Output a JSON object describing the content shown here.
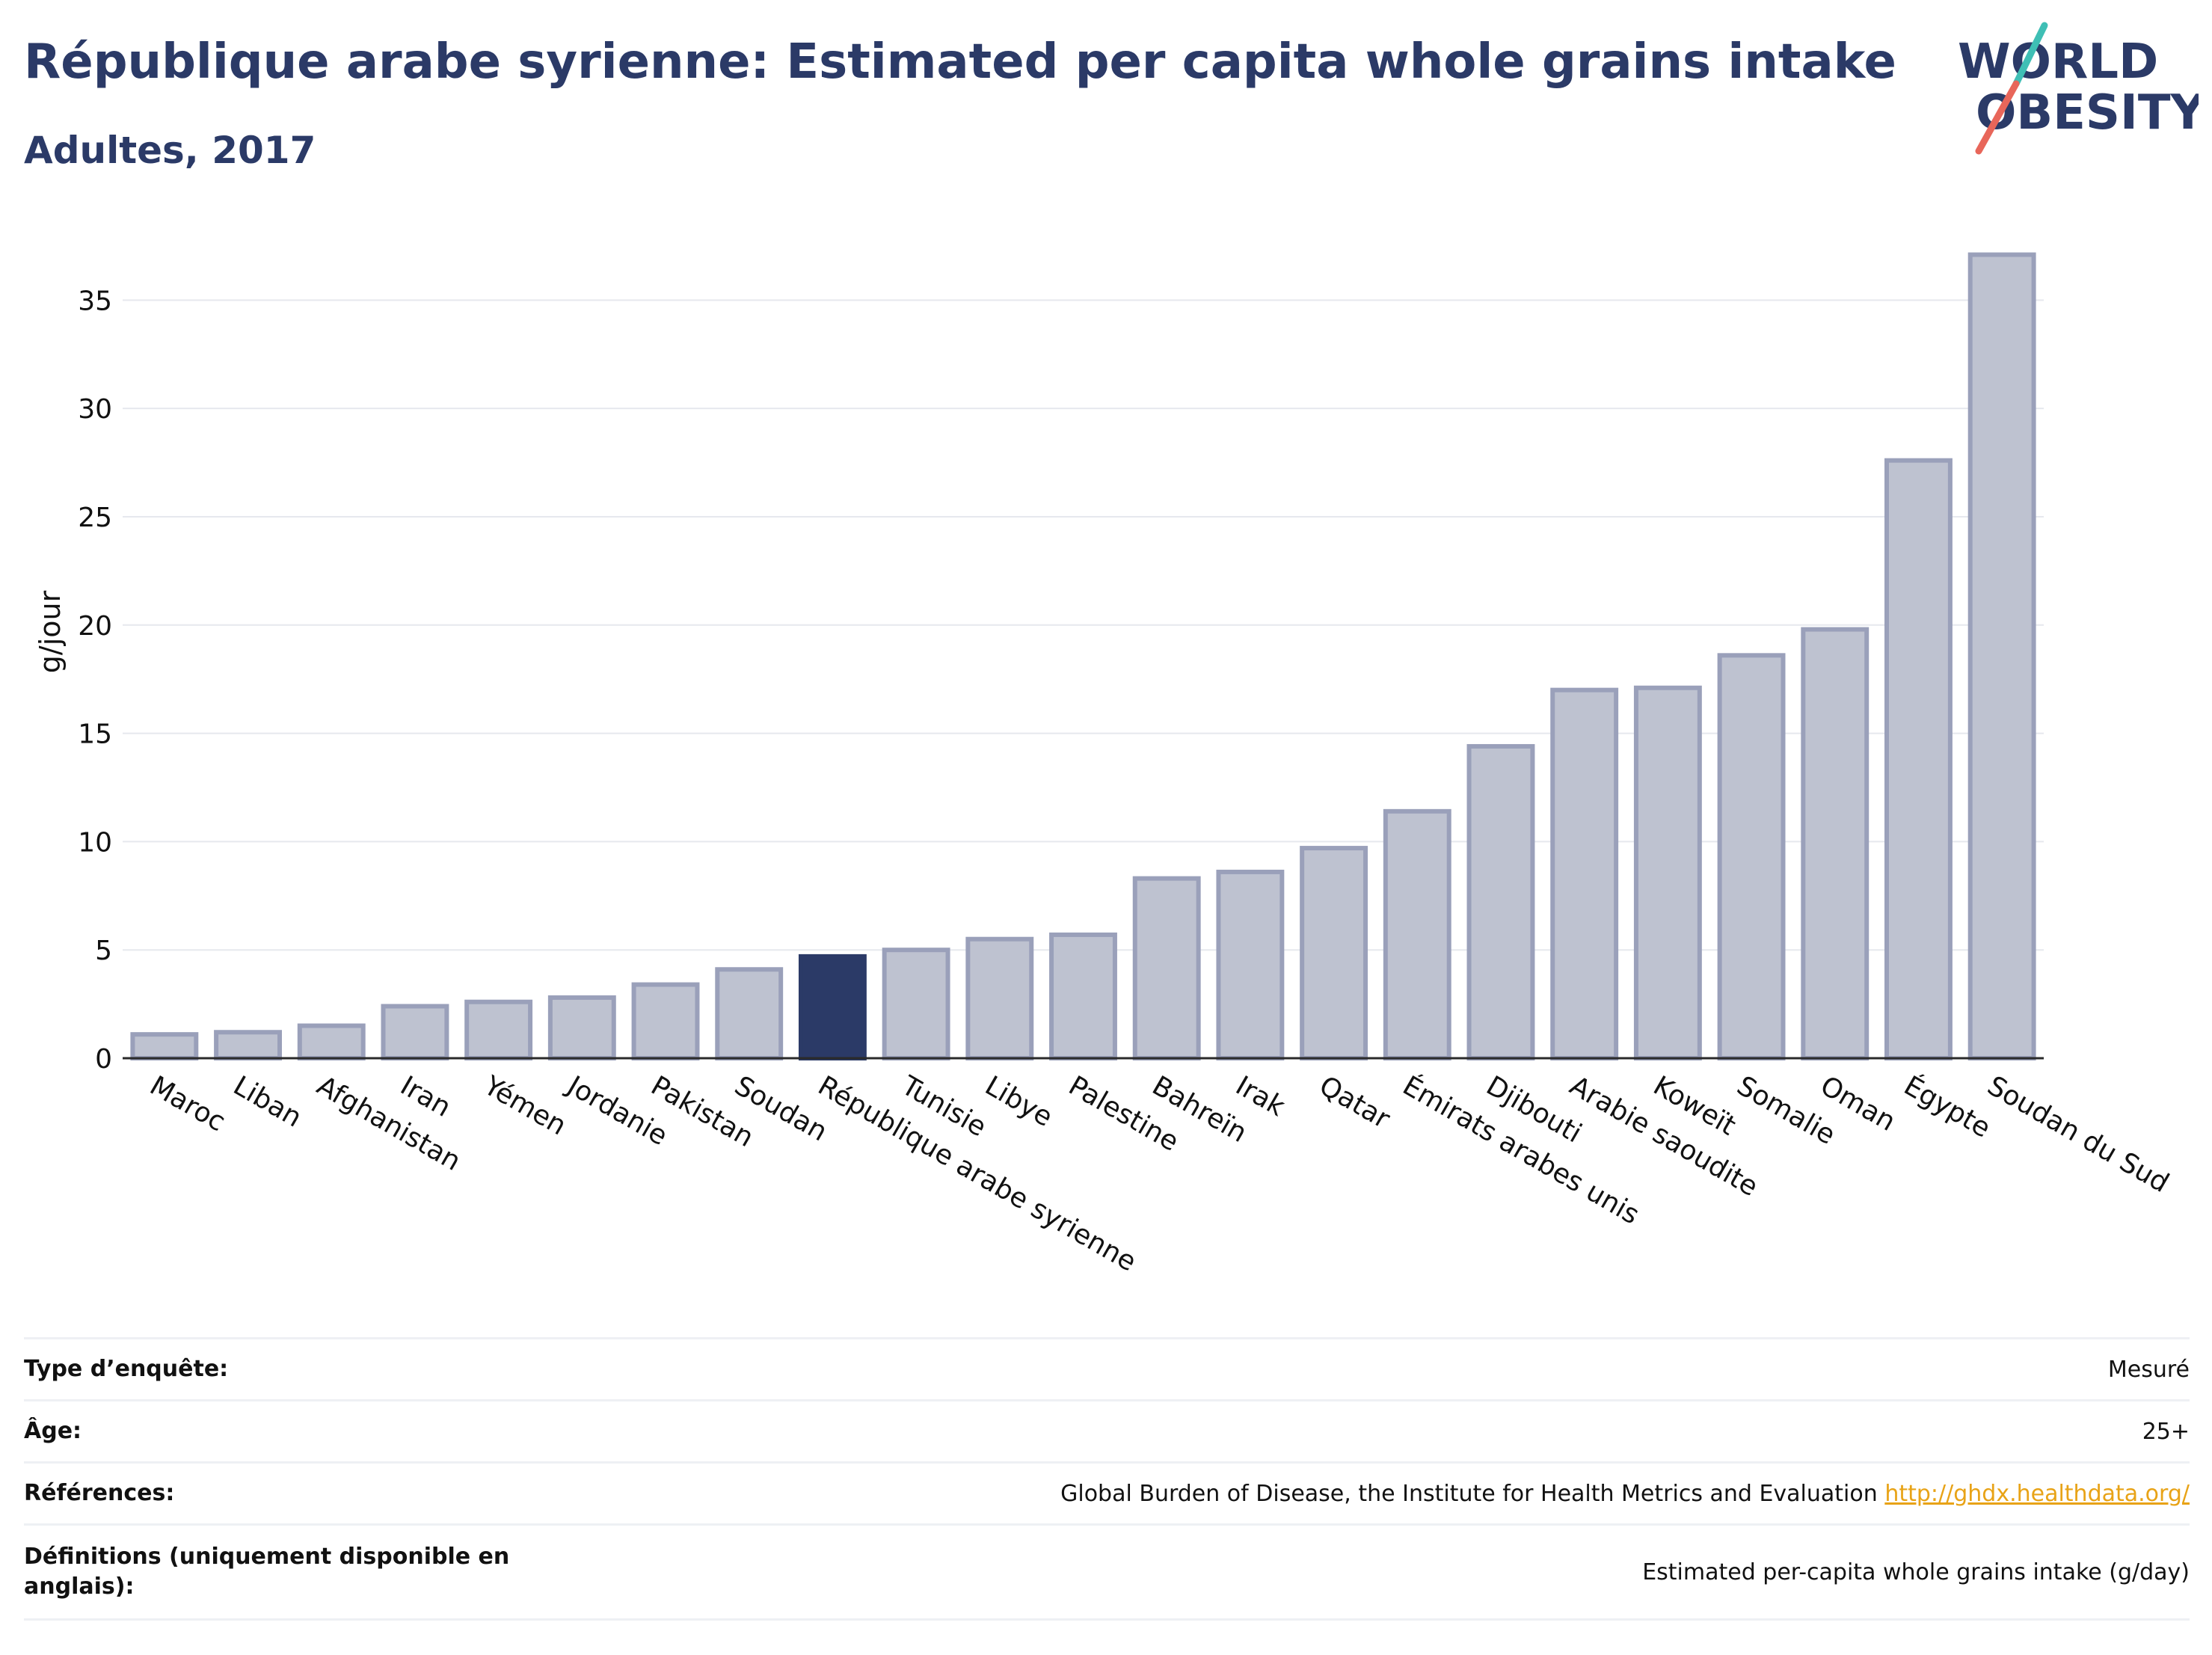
{
  "header": {
    "title": "République arabe syrienne: Estimated per capita whole grains intake",
    "subtitle": "Adultes, 2017"
  },
  "logo": {
    "line1": "WORLD",
    "line2": "OBESITY"
  },
  "colors": {
    "primary": "#2b3a67",
    "bar": "#bec2d0",
    "bar_edge": "#9aa0ba",
    "accent_teal": "#3fbfb5",
    "accent_red": "#e8665a",
    "link": "#e8a317"
  },
  "chart_data": {
    "type": "bar",
    "categories": [
      "Maroc",
      "Liban",
      "Afghanistan",
      "Iran",
      "Yémen",
      "Jordanie",
      "Pakistan",
      "Soudan",
      "République arabe syrienne",
      "Tunisie",
      "Libye",
      "Palestine",
      "Bahreïn",
      "Irak",
      "Qatar",
      "Émirats arabes unis",
      "Djibouti",
      "Arabie saoudite",
      "Koweït",
      "Somalie",
      "Oman",
      "Égypte",
      "Soudan du Sud"
    ],
    "values": [
      1.1,
      1.2,
      1.5,
      2.4,
      2.6,
      2.8,
      3.4,
      4.1,
      4.7,
      5.0,
      5.5,
      5.7,
      8.3,
      8.6,
      9.7,
      11.4,
      14.4,
      17.0,
      17.1,
      18.6,
      19.8,
      27.6,
      37.1
    ],
    "highlight": "République arabe syrienne",
    "ylabel": "g/jour",
    "xlabel": "",
    "ylim": [
      0,
      38.5
    ],
    "yticks": [
      0,
      5,
      10,
      15,
      20,
      25,
      30,
      35
    ],
    "grid": true
  },
  "info": [
    {
      "label": "Type d’enquête:",
      "value": "Mesuré"
    },
    {
      "label": "Âge:",
      "value": "25+"
    },
    {
      "label": "Références:",
      "value": "Global Burden of Disease, the Institute for Health Metrics and Evaluation",
      "link": "http://ghdx.healthdata.org/"
    },
    {
      "label": "Définitions (uniquement disponible en anglais):",
      "value": "Estimated per-capita whole grains intake (g/day)"
    }
  ]
}
